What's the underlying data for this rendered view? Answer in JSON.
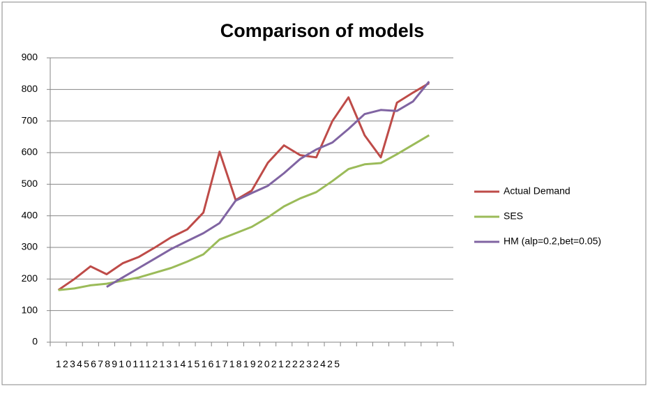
{
  "chart_data": {
    "type": "line",
    "title": "Comparison of models",
    "categories": [
      "1",
      "2",
      "3",
      "4",
      "5",
      "6",
      "7",
      "8",
      "9",
      "10",
      "11",
      "12",
      "13",
      "14",
      "15",
      "16",
      "17",
      "18",
      "19",
      "20",
      "21",
      "22",
      "23",
      "24",
      "25"
    ],
    "series": [
      {
        "name": "Actual Demand",
        "color": "#be4b48",
        "values": [
          165,
          200,
          240,
          215,
          250,
          270,
          300,
          332,
          357,
          410,
          603,
          450,
          480,
          568,
          623,
          592,
          585,
          700,
          775,
          655,
          585,
          758,
          790,
          820,
          null
        ]
      },
      {
        "name": "SES",
        "color": "#9bbb59",
        "values": [
          165,
          170,
          180,
          185,
          195,
          205,
          220,
          235,
          255,
          278,
          325,
          345,
          365,
          395,
          430,
          455,
          475,
          510,
          548,
          563,
          567,
          595,
          625,
          655,
          null
        ]
      },
      {
        "name": "HM (alp=0.2,bet=0.05)",
        "color": "#8064a2",
        "values": [
          null,
          null,
          null,
          175,
          205,
          235,
          265,
          295,
          320,
          345,
          377,
          448,
          472,
          495,
          535,
          580,
          610,
          632,
          675,
          722,
          735,
          732,
          762,
          825,
          null
        ]
      }
    ],
    "ylim": [
      0,
      900
    ],
    "yticks": [
      0,
      100,
      200,
      300,
      400,
      500,
      600,
      700,
      800,
      900
    ],
    "grid": true,
    "legend": "right"
  }
}
